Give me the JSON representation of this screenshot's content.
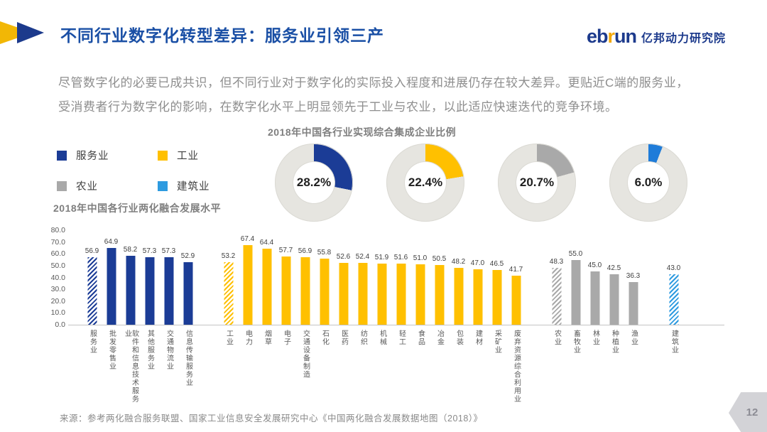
{
  "header": {
    "title": "不同行业数字化转型差异：服务业引领三产",
    "logo": {
      "eb": "eb",
      "r": "r",
      "un": "un",
      "org": "亿邦动力研究院"
    }
  },
  "intro": {
    "line1": "尽管数字化的必要已成共识，但不同行业对于数字化的实际投入程度和进展仍存在较大差异。更贴近C端的服务业，",
    "line2": "受消费者行为数字化的影响，在数字化水平上明显领先于工业与农业，以此适应快速迭代的竞争环境。"
  },
  "legend": {
    "items": [
      {
        "label": "服务业",
        "color": "#1B3C96"
      },
      {
        "label": "工业",
        "color": "#FFC000"
      },
      {
        "label": "农业",
        "color": "#A9A9A9"
      },
      {
        "label": "建筑业",
        "color": "#2E9BE0"
      }
    ]
  },
  "chart_data": [
    {
      "type": "pie",
      "title": "2018年中国各行业实现综合集成企业比例",
      "track_color": "#E6E5E0",
      "donuts": [
        {
          "name": "服务业",
          "value": 28.2,
          "label": "28.2%",
          "color": "#1B3C96"
        },
        {
          "name": "工业",
          "value": 22.4,
          "label": "22.4%",
          "color": "#FFC000"
        },
        {
          "name": "农业",
          "value": 20.7,
          "label": "20.7%",
          "color": "#A9A9A9"
        },
        {
          "name": "建筑业",
          "value": 6.0,
          "label": "6.0%",
          "color": "#1F7CD9"
        }
      ]
    },
    {
      "type": "bar",
      "title": "2018年中国各行业两化融合发展水平",
      "ylim": [
        0,
        80
      ],
      "yticks": [
        "80.0",
        "70.0",
        "60.0",
        "50.0",
        "40.0",
        "30.0",
        "20.0",
        "10.0",
        "0.0"
      ],
      "groups": [
        {
          "name": "服务业",
          "color": "#1B3C96",
          "bars": [
            {
              "label": "服务业",
              "value": 56.9,
              "hatched": true
            },
            {
              "label": "批发零售业",
              "value": 64.9
            },
            {
              "label": "软件和信息技术服务业",
              "value": 58.2
            },
            {
              "label": "其他服务业",
              "value": 57.3
            },
            {
              "label": "交通物流业",
              "value": 57.3
            },
            {
              "label": "信息传输服务业",
              "value": 52.9
            }
          ]
        },
        {
          "name": "工业",
          "color": "#FFC000",
          "bars": [
            {
              "label": "工业",
              "value": 53.2,
              "hatched": true
            },
            {
              "label": "电力",
              "value": 67.4
            },
            {
              "label": "烟草",
              "value": 64.4
            },
            {
              "label": "电子",
              "value": 57.7
            },
            {
              "label": "交通设备制造",
              "value": 56.9
            },
            {
              "label": "石化",
              "value": 55.8
            },
            {
              "label": "医药",
              "value": 52.6
            },
            {
              "label": "纺织",
              "value": 52.4
            },
            {
              "label": "机械",
              "value": 51.9
            },
            {
              "label": "轻工",
              "value": 51.6
            },
            {
              "label": "食品",
              "value": 51.0
            },
            {
              "label": "冶金",
              "value": 50.5
            },
            {
              "label": "包装",
              "value": 48.2
            },
            {
              "label": "建材",
              "value": 47.0
            },
            {
              "label": "采矿业",
              "value": 46.5
            },
            {
              "label": "废弃资源综合利用业",
              "value": 41.7
            }
          ]
        },
        {
          "name": "农业",
          "color": "#A9A9A9",
          "bars": [
            {
              "label": "农业",
              "value": 48.3,
              "hatched": true
            },
            {
              "label": "畜牧业",
              "value": 55.0
            },
            {
              "label": "林业",
              "value": 45.0
            },
            {
              "label": "种植业",
              "value": 42.5
            },
            {
              "label": "渔业",
              "value": 36.3
            }
          ]
        },
        {
          "name": "建筑业",
          "color": "#2E9BE0",
          "bars": [
            {
              "label": "建筑业",
              "value": 43.0,
              "hatched": true
            }
          ]
        }
      ]
    }
  ],
  "source": "来源：参考两化融合服务联盟、国家工业信息安全发展研究中心《中国两化融合发展数据地图（2018）》",
  "page_number": "12"
}
